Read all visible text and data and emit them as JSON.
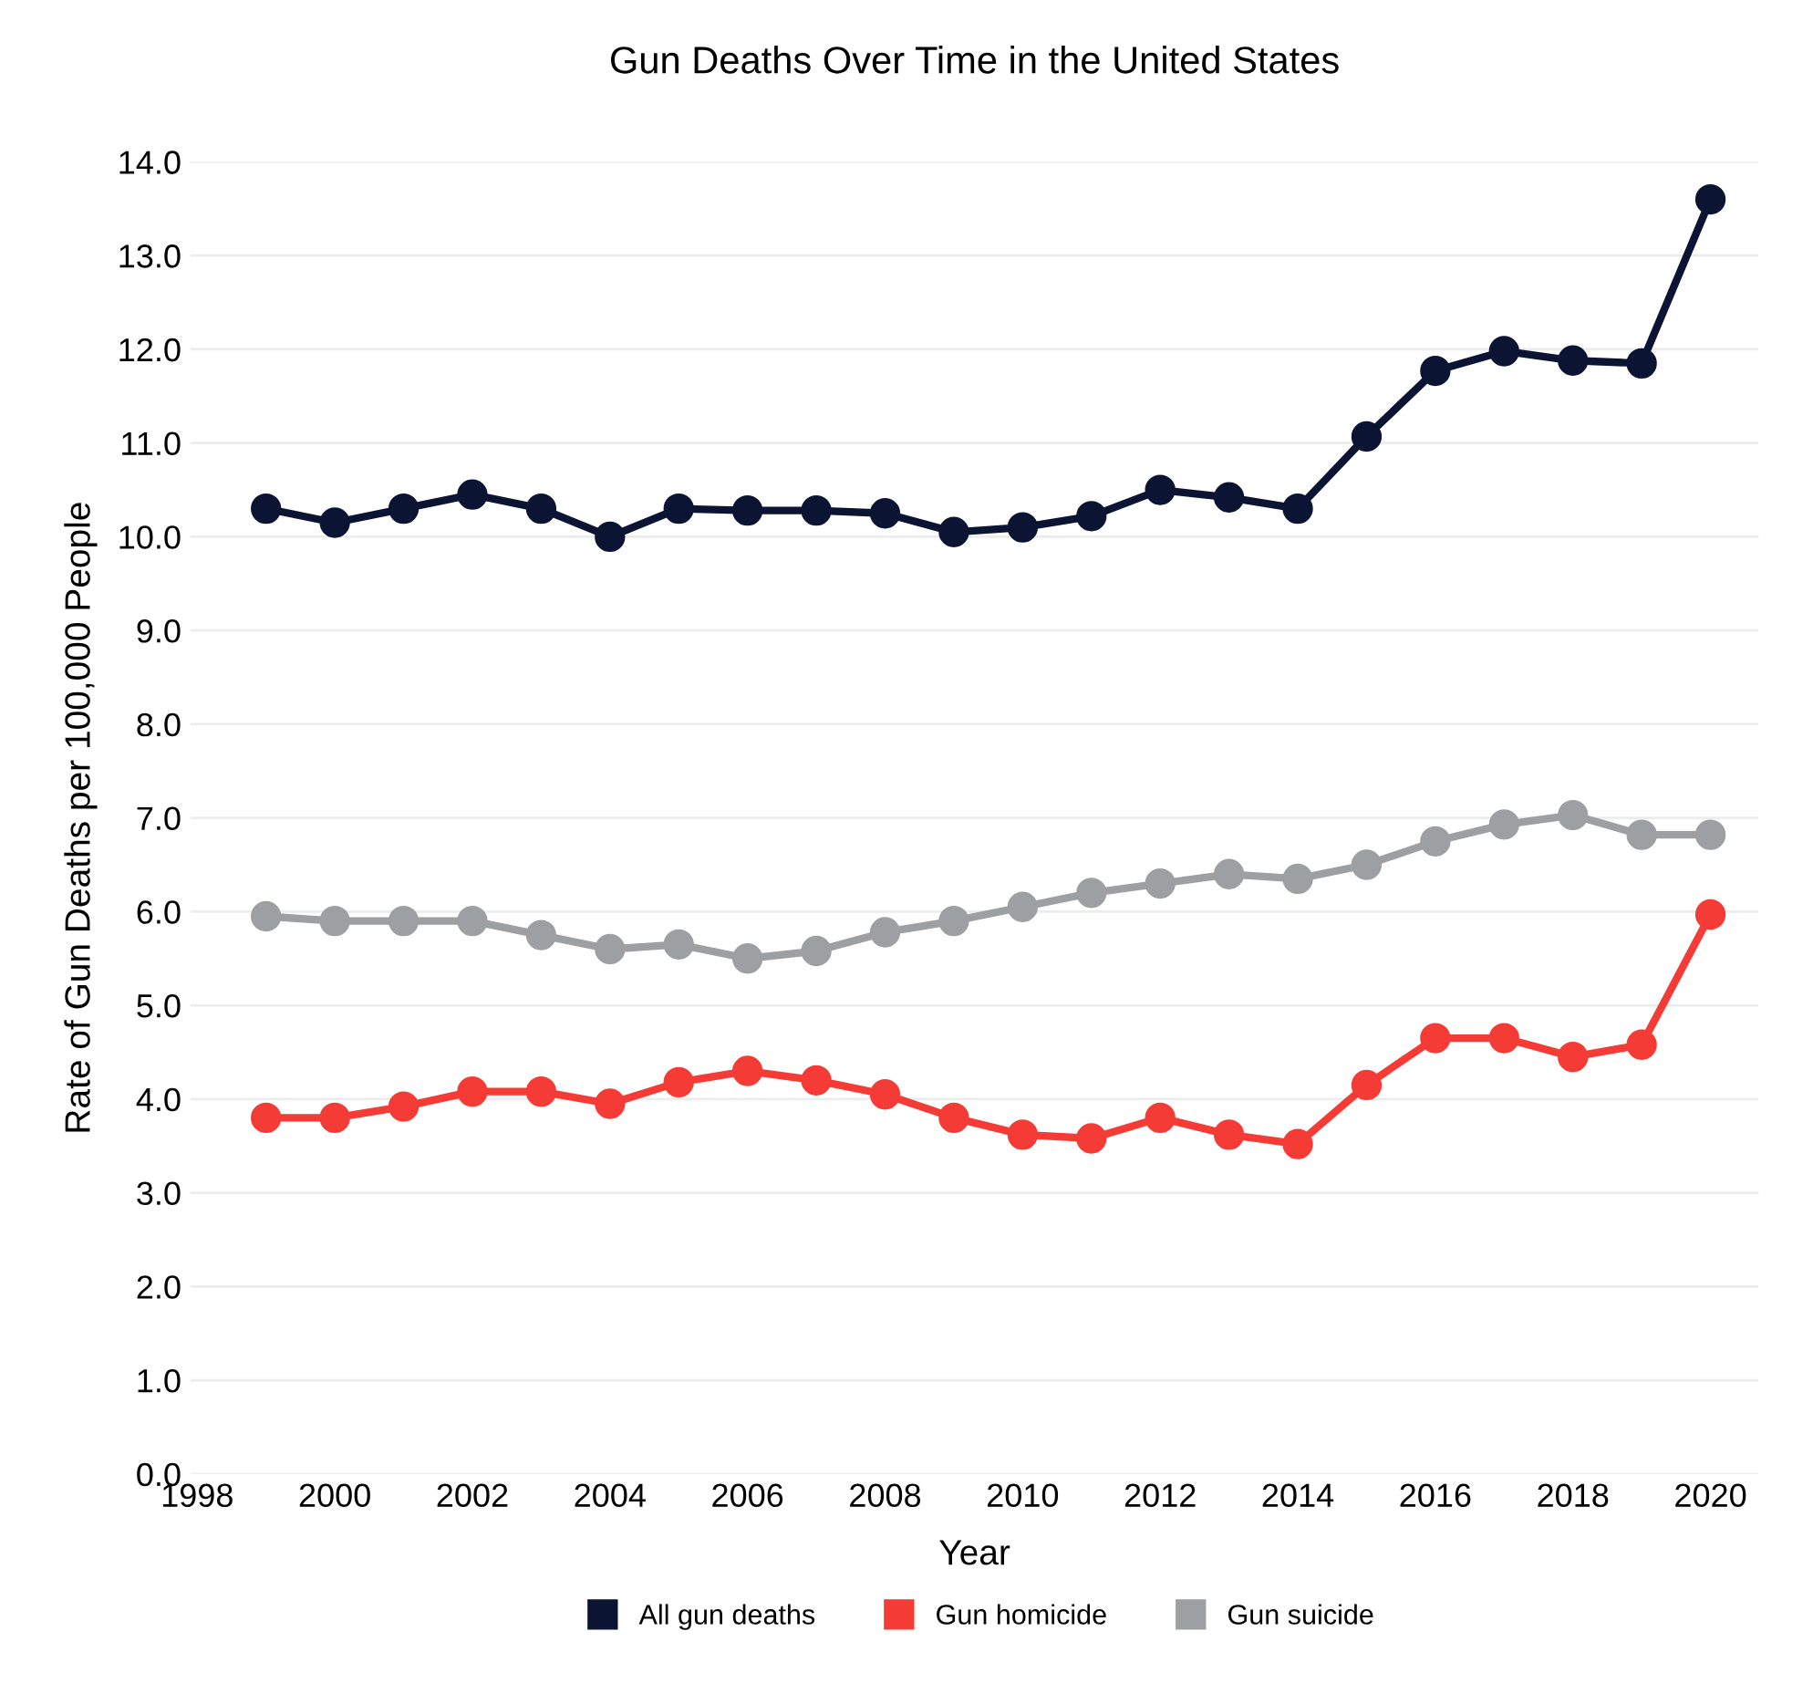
{
  "chart_data": {
    "type": "line",
    "title": "Gun Deaths Over Time in the United States",
    "xlabel": "Year",
    "ylabel": "Rate of Gun Deaths per 100,000 People",
    "x": [
      1999,
      2000,
      2001,
      2002,
      2003,
      2004,
      2005,
      2006,
      2007,
      2008,
      2009,
      2010,
      2011,
      2012,
      2013,
      2014,
      2015,
      2016,
      2017,
      2018,
      2019,
      2020
    ],
    "series": [
      {
        "name": "All gun deaths",
        "color": "#0b1533",
        "values": [
          10.3,
          10.15,
          10.3,
          10.45,
          10.3,
          10.0,
          10.3,
          10.28,
          10.28,
          10.25,
          10.05,
          10.1,
          10.22,
          10.5,
          10.42,
          10.3,
          11.07,
          11.77,
          11.98,
          11.88,
          11.85,
          13.6
        ]
      },
      {
        "name": "Gun homicide",
        "color": "#f53b35",
        "values": [
          3.8,
          3.8,
          3.92,
          4.08,
          4.08,
          3.95,
          4.18,
          4.3,
          4.2,
          4.05,
          3.8,
          3.62,
          3.58,
          3.8,
          3.62,
          3.52,
          4.15,
          4.65,
          4.65,
          4.45,
          4.58,
          5.97
        ]
      },
      {
        "name": "Gun suicide",
        "color": "#9ca0a3",
        "values": [
          5.95,
          5.9,
          5.9,
          5.9,
          5.75,
          5.6,
          5.65,
          5.5,
          5.58,
          5.78,
          5.9,
          6.05,
          6.2,
          6.3,
          6.4,
          6.35,
          6.5,
          6.75,
          6.93,
          7.03,
          6.82,
          6.82
        ]
      }
    ],
    "xlim": [
      1997.9,
      2020.7
    ],
    "xticks": [
      1998,
      2000,
      2002,
      2004,
      2006,
      2008,
      2010,
      2012,
      2014,
      2016,
      2018,
      2020
    ],
    "ylim": [
      0,
      14
    ],
    "yticks": [
      {
        "value": 0,
        "label": "0.0"
      },
      {
        "value": 1,
        "label": "1.0"
      },
      {
        "value": 2,
        "label": "2.0"
      },
      {
        "value": 3,
        "label": "3.0"
      },
      {
        "value": 4,
        "label": "4.0"
      },
      {
        "value": 5,
        "label": "5.0"
      },
      {
        "value": 6,
        "label": "6.0"
      },
      {
        "value": 7,
        "label": "7.0"
      },
      {
        "value": 8,
        "label": "8.0"
      },
      {
        "value": 9,
        "label": "9.0"
      },
      {
        "value": 10,
        "label": "10.0"
      },
      {
        "value": 11,
        "label": "11.0"
      },
      {
        "value": 12,
        "label": "12.0"
      },
      {
        "value": 13,
        "label": "13.0"
      },
      {
        "value": 14,
        "label": "14.0"
      }
    ],
    "grid": "y",
    "legend": "bottom",
    "marker": "circle",
    "line_style": "solid"
  }
}
